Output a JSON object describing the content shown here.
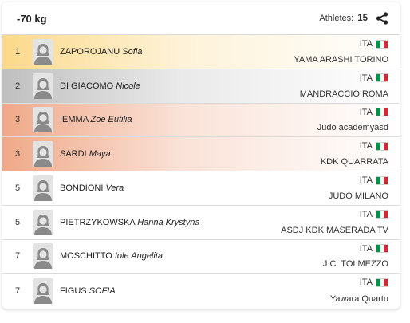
{
  "header": {
    "category": "-70 kg",
    "athletes_label": "Athletes:",
    "athletes_count": "15",
    "share_icon": "share-icon"
  },
  "colors": {
    "gold": "#fbd98a",
    "silver": "#bfbfbf",
    "bronze": "#efa888",
    "flag_green": "#009246",
    "flag_white": "#ffffff",
    "flag_red": "#ce2b37"
  },
  "results": [
    {
      "rank": "1",
      "surname": "ZAPOROJANU",
      "firstname": "Sofia",
      "nation": "ITA",
      "club": "YAMA ARASHI TORINO",
      "medal": "gold"
    },
    {
      "rank": "2",
      "surname": "DI GIACOMO",
      "firstname": "Nicole",
      "nation": "ITA",
      "club": "MANDRACCIO ROMA",
      "medal": "silver"
    },
    {
      "rank": "3",
      "surname": "IEMMA",
      "firstname": "Zoe Eutilia",
      "nation": "ITA",
      "club": "Judo academyasd",
      "medal": "bronze"
    },
    {
      "rank": "3",
      "surname": "SARDI",
      "firstname": "Maya",
      "nation": "ITA",
      "club": "KDK QUARRATA",
      "medal": "bronze"
    },
    {
      "rank": "5",
      "surname": "BONDIONI",
      "firstname": "Vera",
      "nation": "ITA",
      "club": "JUDO MILANO",
      "medal": ""
    },
    {
      "rank": "5",
      "surname": "PIETRZYKOWSKA",
      "firstname": "Hanna Krystyna",
      "nation": "ITA",
      "club": "ASDJ KDK MASERADA TV",
      "medal": ""
    },
    {
      "rank": "7",
      "surname": "MOSCHITTO",
      "firstname": "Iole Angelita",
      "nation": "ITA",
      "club": "J.C. TOLMEZZO",
      "medal": ""
    },
    {
      "rank": "7",
      "surname": "FIGUS",
      "firstname": "SOFIA",
      "nation": "ITA",
      "club": "Yawara Quartu",
      "medal": ""
    }
  ]
}
